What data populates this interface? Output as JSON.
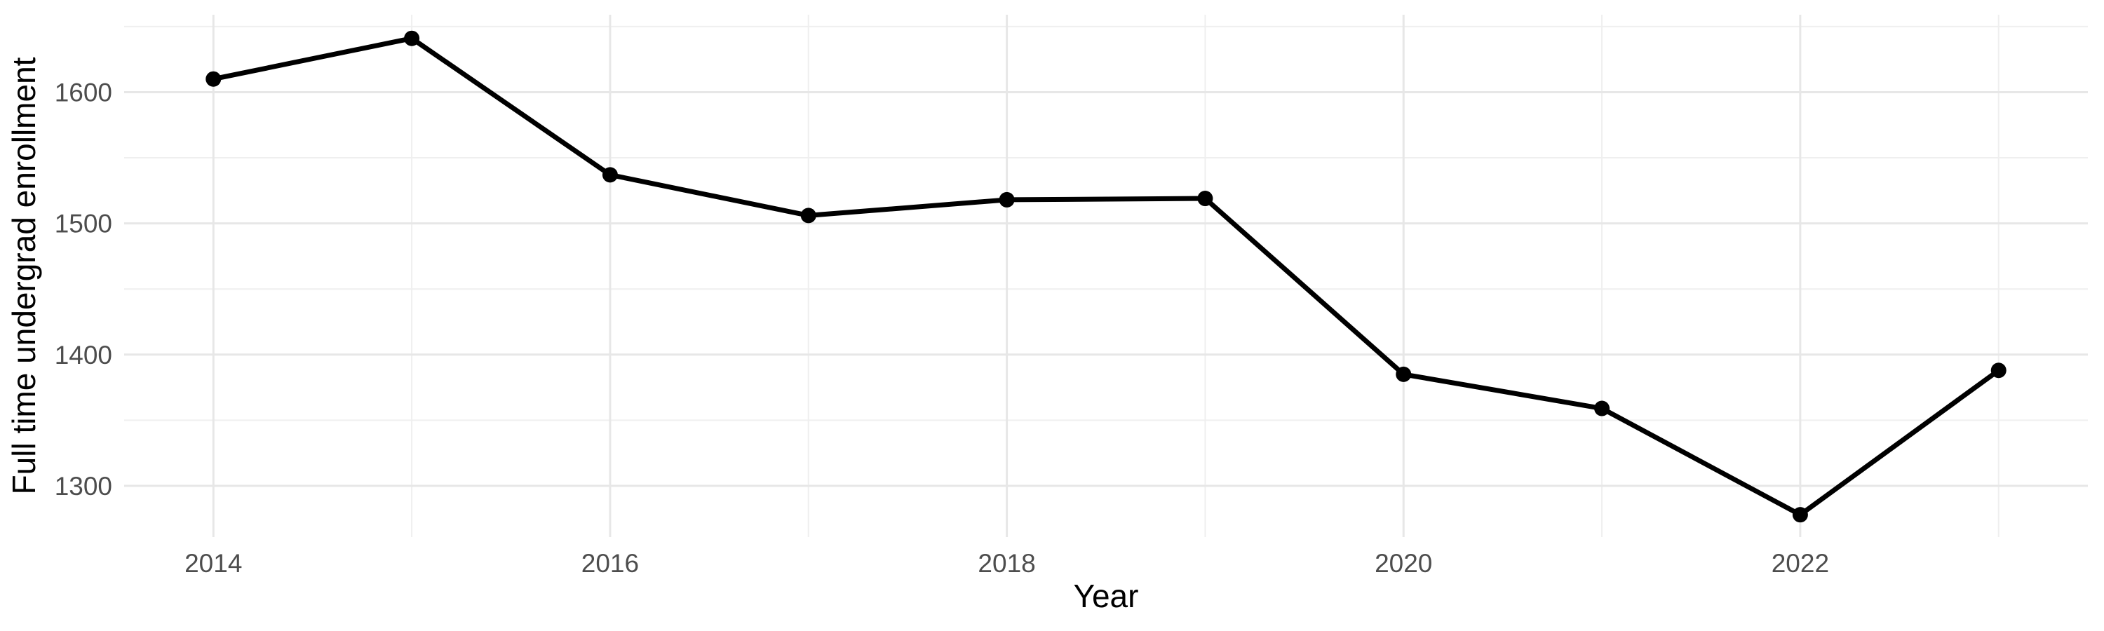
{
  "chart_data": {
    "type": "line",
    "title": "",
    "xlabel": "Year",
    "ylabel": "Full time undergrad enrollment",
    "x": [
      2014,
      2015,
      2016,
      2017,
      2018,
      2019,
      2020,
      2021,
      2022,
      2023
    ],
    "series": [
      {
        "name": "Full time undergrad enrollment",
        "values": [
          1610,
          1641,
          1537,
          1506,
          1518,
          1519,
          1385,
          1359,
          1278,
          1388
        ]
      }
    ],
    "x_major_ticks": [
      2014,
      2016,
      2018,
      2020,
      2022
    ],
    "x_minor_gridlines": [
      2015,
      2017,
      2019,
      2021,
      2023
    ],
    "y_major_ticks": [
      1300,
      1400,
      1500,
      1600
    ],
    "y_minor_gridlines": [
      1350,
      1450,
      1550,
      1650
    ],
    "xlim": [
      2013.55,
      2023.45
    ],
    "ylim": [
      1261,
      1659
    ],
    "grid": "major+minor",
    "legend_position": "none",
    "marker": "filled-circle",
    "colors": {
      "line": "#000000",
      "point": "#000000",
      "grid_major": "#E7E7E7",
      "grid_minor": "#EFEFEF",
      "tick_label": "#4D4D4D",
      "axis_title": "#000000",
      "background": "#FFFFFF"
    }
  }
}
